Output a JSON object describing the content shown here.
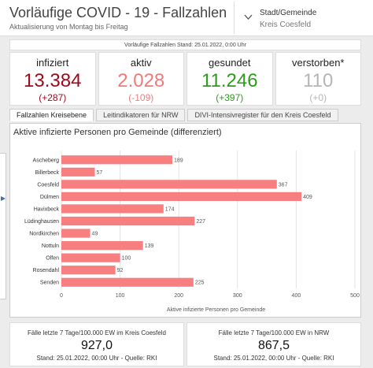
{
  "header": {
    "title": "Vorläufige COVID - 19 - Fallzahlen",
    "subtitle": "Aktualisierung von Montag bis Freitag",
    "selector": {
      "label": "Stadt/Gemeinde",
      "value": "Kreis Coesfeld",
      "icon": "chevron-down-icon"
    }
  },
  "stand_bar": "Vorläufige Fallzahlen Stand: 25.01.2022, 0:00 Uhr",
  "kpis": [
    {
      "name": "infiziert",
      "value": "13.384",
      "delta": "(+287)",
      "color": "#9c0a1a"
    },
    {
      "name": "aktiv",
      "value": "2.028",
      "delta": "(-109)",
      "color": "#ef7a7a"
    },
    {
      "name": "gesundet",
      "value": "11.246",
      "delta": "(+397)",
      "color": "#2e9a1e"
    },
    {
      "name": "verstorben*",
      "value": "110",
      "delta": "(+0)",
      "color": "#b5b5b5"
    }
  ],
  "tabs": [
    {
      "label": "Fallzahlen Kreisebene",
      "active": true
    },
    {
      "label": "Leitindikatoren für NRW",
      "active": false
    },
    {
      "label": "DIVI-Intensivregister für den Kreis Coesfeld",
      "active": false
    }
  ],
  "chart_panel_title": "Aktive infizierte Personen pro Gemeinde (differenziert)",
  "chart_data": {
    "type": "bar",
    "orientation": "horizontal",
    "categories": [
      "Ascheberg",
      "Billerbeck",
      "Coesfeld",
      "Dülmen",
      "Havixbeck",
      "Lüdinghausen",
      "Nordkirchen",
      "Nottuln",
      "Olfen",
      "Rosendahl",
      "Senden"
    ],
    "values": [
      189,
      57,
      367,
      409,
      174,
      227,
      49,
      139,
      100,
      92,
      225
    ],
    "xlabel": "Aktive infizierte Personen pro Gemeinde",
    "xlim": [
      0,
      500
    ],
    "xticks": [
      0,
      100,
      200,
      300,
      400,
      500
    ],
    "bar_color": "#f77f80",
    "grid": true
  },
  "bottom": [
    {
      "label": "Fälle letzte 7 Tage/100.000 EW im Kreis Coesfeld",
      "value": "927,0",
      "stand": "Stand: 25.01.2022, 00:00 Uhr - Quelle: RKI"
    },
    {
      "label": "Fälle letzte 7 Tage/100.000 EW in NRW",
      "value": "867,5",
      "stand": "Stand: 25.01.2022, 00:00 Uhr - Quelle: RKI"
    }
  ]
}
